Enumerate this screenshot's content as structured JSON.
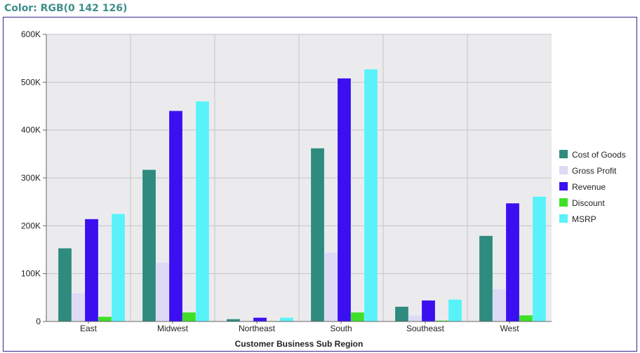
{
  "header": {
    "title": "Color: RGB(0 142 126)"
  },
  "chart_data": {
    "type": "bar",
    "title": "",
    "xlabel": "Customer Business Sub Region",
    "ylabel": "",
    "categories": [
      "East",
      "Midwest",
      "Northeast",
      "South",
      "Southeast",
      "West"
    ],
    "y_ticks": [
      "0",
      "100K",
      "200K",
      "300K",
      "400K",
      "500K",
      "600K"
    ],
    "ylim": [
      0,
      600000
    ],
    "grid": true,
    "legend_position": "right",
    "series": [
      {
        "name": "Cost of Goods",
        "color": "#2e8b7e",
        "values": [
          153000,
          317000,
          5000,
          362000,
          31000,
          179000
        ]
      },
      {
        "name": "Gross Profit",
        "color": "#dcdaf5",
        "values": [
          59000,
          123000,
          2000,
          144000,
          13000,
          68000
        ]
      },
      {
        "name": "Revenue",
        "color": "#3c0ff0",
        "values": [
          214000,
          440000,
          8000,
          508000,
          44000,
          247000
        ]
      },
      {
        "name": "Discount",
        "color": "#3fdf28",
        "values": [
          10000,
          19000,
          1000,
          19000,
          2000,
          13000
        ]
      },
      {
        "name": "MSRP",
        "color": "#59f2f9",
        "values": [
          225000,
          460000,
          8000,
          527000,
          46000,
          261000
        ]
      }
    ]
  }
}
